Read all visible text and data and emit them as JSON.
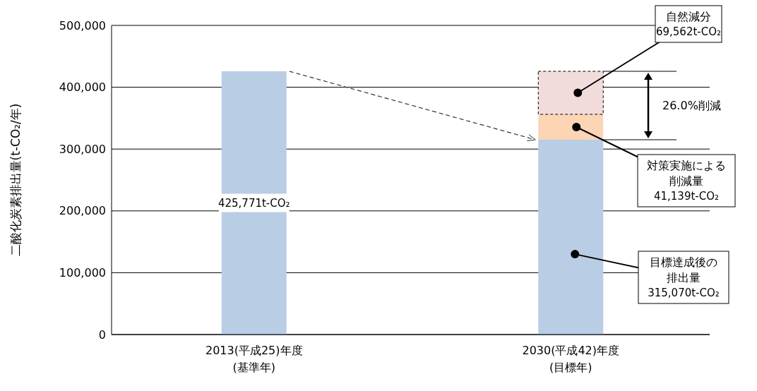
{
  "chart_data": {
    "type": "bar",
    "stacked": true,
    "categories": [
      "2013(平成25)年度\n(基準年)",
      "2030(平成42)年度\n(目標年)"
    ],
    "ylabel": "二酸化炭素排出量(t-CO₂/年)",
    "ylim": [
      0,
      500000
    ],
    "yticks": [
      {
        "value": 0,
        "label": "0"
      },
      {
        "value": 100000,
        "label": "100,000"
      },
      {
        "value": 200000,
        "label": "200,000"
      },
      {
        "value": 300000,
        "label": "300,000"
      },
      {
        "value": 400000,
        "label": "400,000"
      },
      {
        "value": 500000,
        "label": "500,000"
      }
    ],
    "grid": "y",
    "series": [
      {
        "name": "目標達成後の排出量",
        "color": "#b9cde5",
        "values": [
          425771,
          315070
        ],
        "value_labels": [
          "425,771t-CO₂",
          "315,070t-CO₂"
        ]
      },
      {
        "name": "対策実施による削減量",
        "color": "#fcd5b5",
        "values": [
          null,
          41139
        ],
        "value_labels": [
          null,
          "41,139t-CO₂"
        ]
      },
      {
        "name": "自然減分",
        "color": "#f2dcdb",
        "values": [
          null,
          69562
        ],
        "value_labels": [
          null,
          "69,562t-CO₂"
        ],
        "line_style": "dashed"
      }
    ],
    "annotations": [
      "26.0%削減"
    ]
  }
}
